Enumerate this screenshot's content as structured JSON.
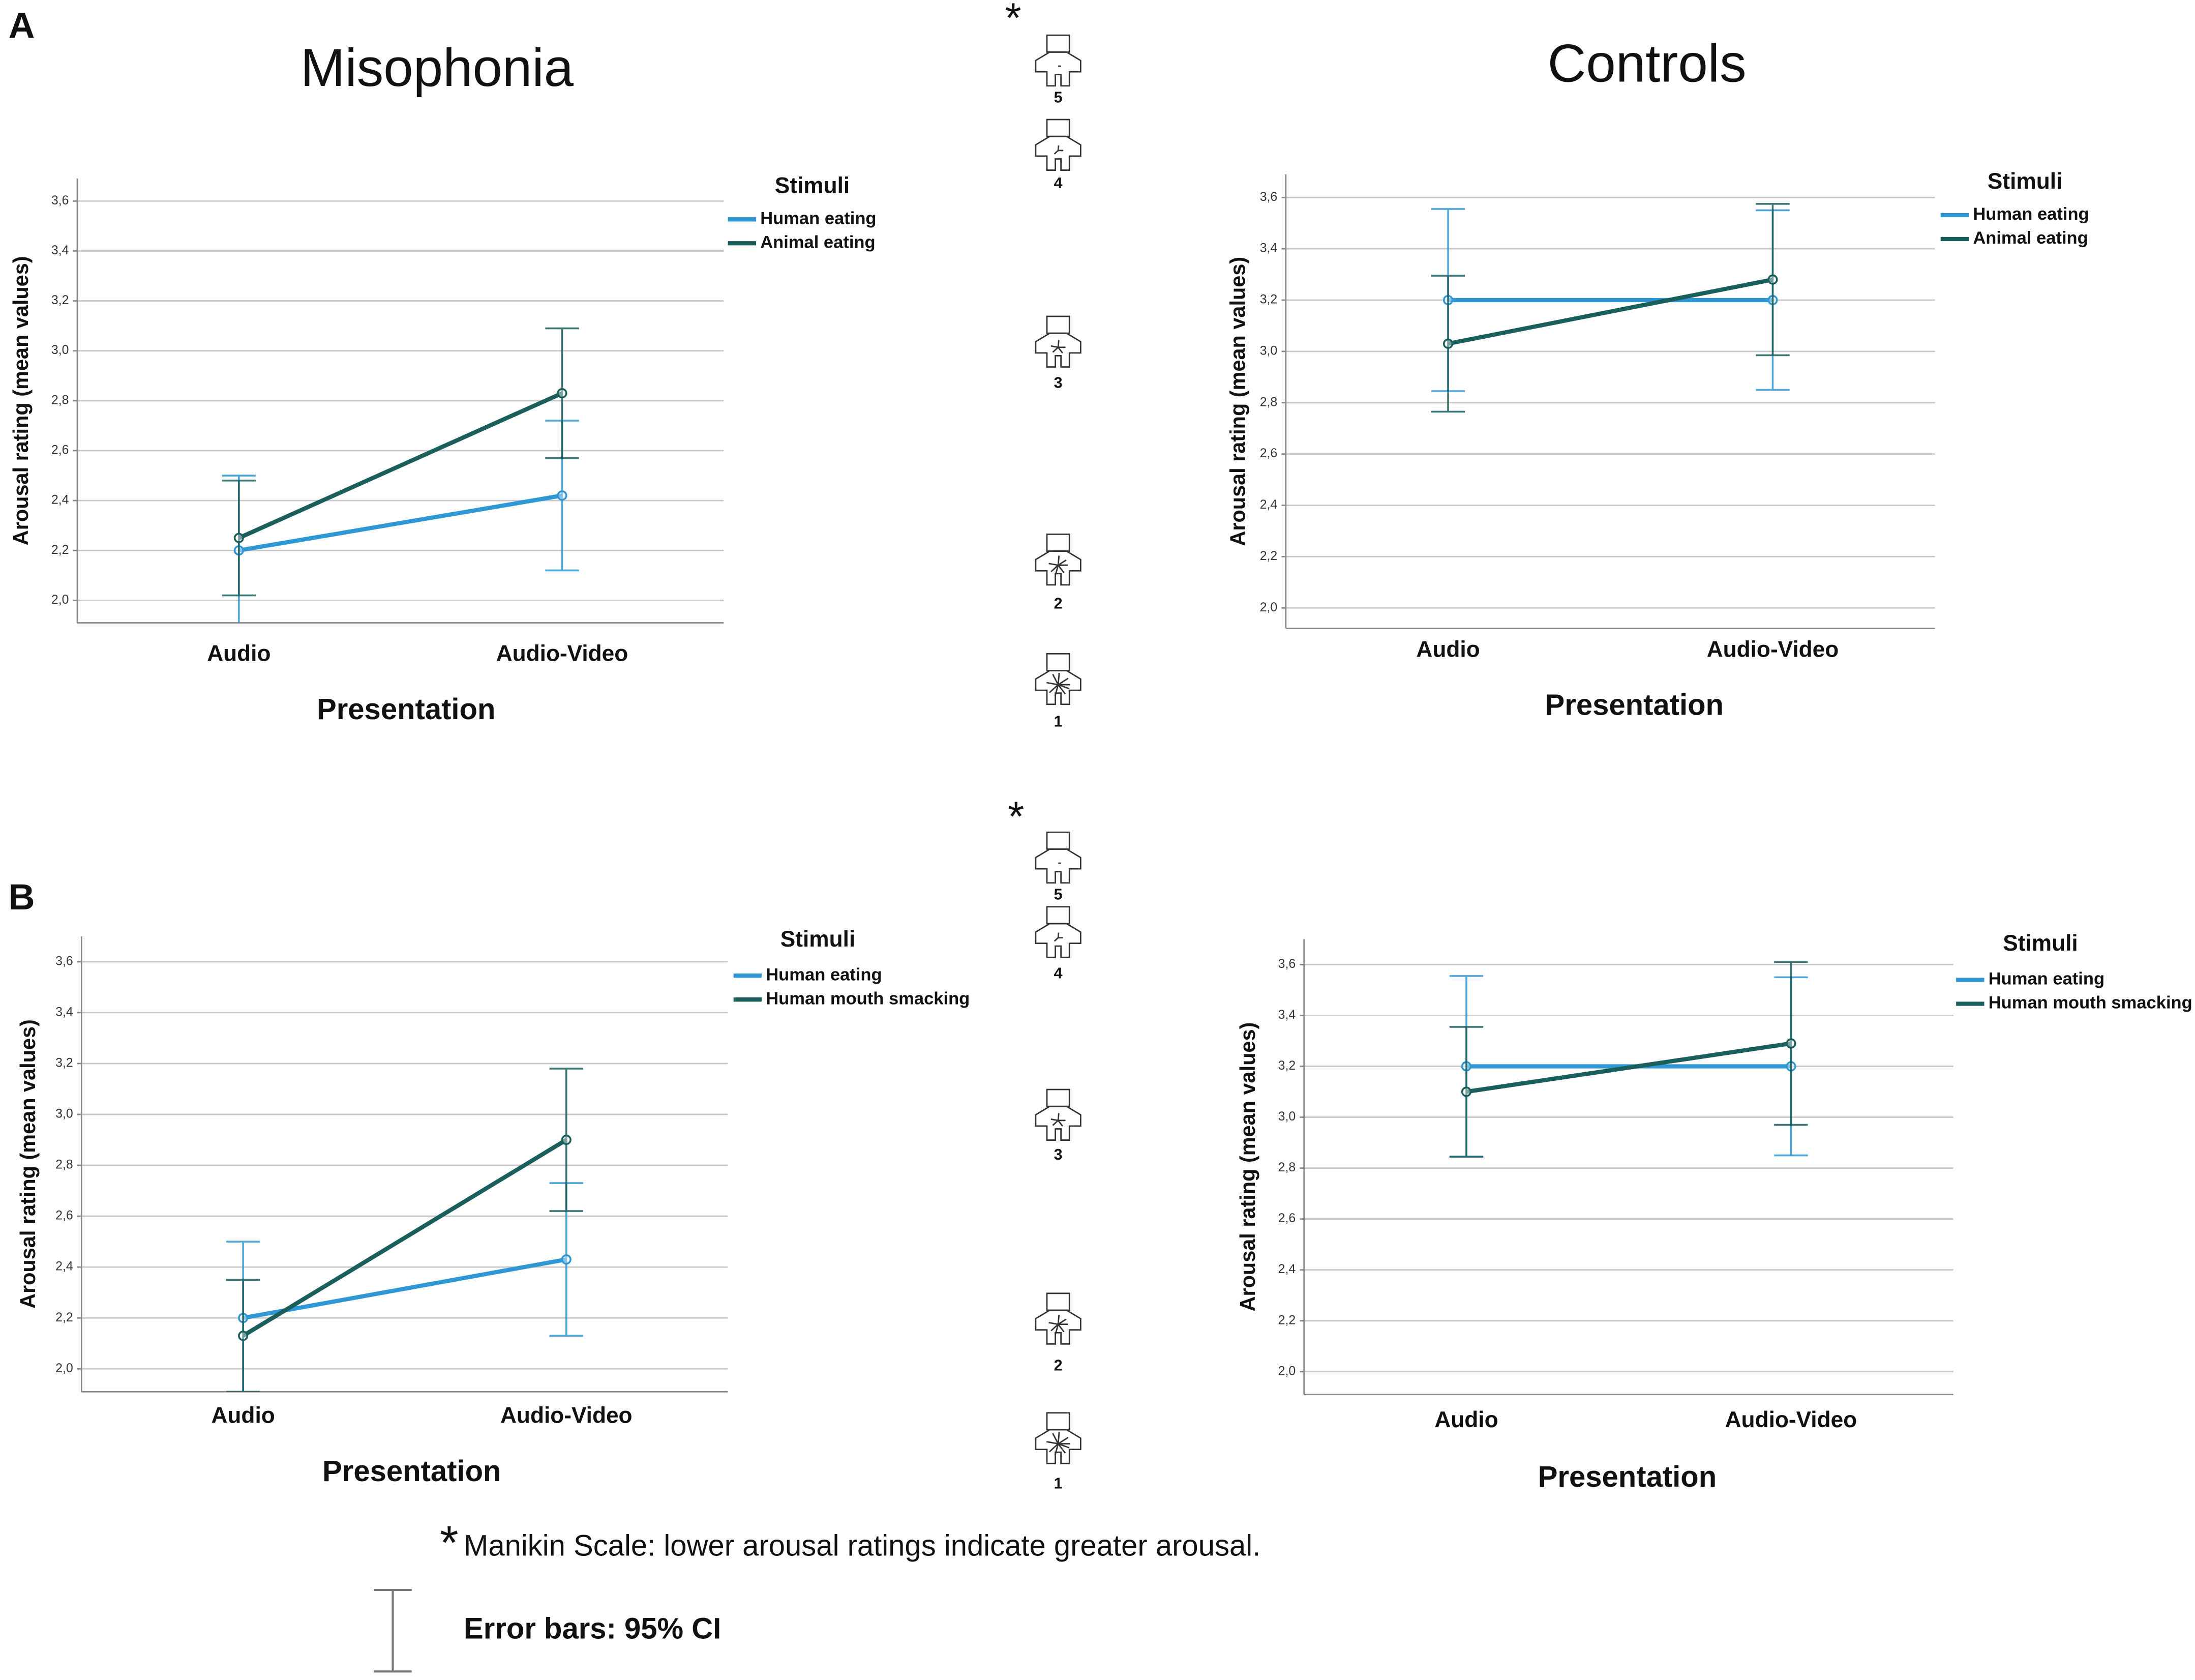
{
  "panel_labels": [
    "A",
    "B"
  ],
  "column_titles": [
    "Misophonia",
    "Controls"
  ],
  "manikin_scales": [
    {
      "marker": "*",
      "levels": [
        "5",
        "4",
        "3",
        "2",
        "1"
      ]
    },
    {
      "marker": "*",
      "levels": [
        "5",
        "4",
        "3",
        "2",
        "1"
      ]
    }
  ],
  "footnote": {
    "marker": "*",
    "text": "Manikin Scale: lower arousal ratings indicate greater arousal.",
    "error_bar_note": "Error bars: 95% CI"
  },
  "chart_data": [
    {
      "type": "line",
      "x_label": "Presentation",
      "y_label": "Arousal rating (mean values)",
      "legend_title": "Stimuli",
      "categories": [
        "Audio",
        "Audio-Video"
      ],
      "series": [
        {
          "name": "Human eating",
          "color": "#2f98d4",
          "values": [
            2.2,
            2.42
          ],
          "errors": [
            0.3,
            0.3
          ]
        },
        {
          "name": "Animal eating",
          "color": "#1b5f5c",
          "values": [
            2.25,
            2.83
          ],
          "errors": [
            0.23,
            0.26
          ]
        }
      ],
      "ylim": [
        1.91,
        3.69
      ],
      "yticks": [
        {
          "value": 2.0,
          "label": "2,0"
        },
        {
          "value": 2.2,
          "label": "2,2"
        },
        {
          "value": 2.4,
          "label": "2,4"
        },
        {
          "value": 2.6,
          "label": "2,6"
        },
        {
          "value": 2.8,
          "label": "2,8"
        },
        {
          "value": 3.0,
          "label": "3,0"
        },
        {
          "value": 3.2,
          "label": "3,2"
        },
        {
          "value": 3.4,
          "label": "3,4"
        },
        {
          "value": 3.6,
          "label": "3,6"
        }
      ],
      "grid": true
    },
    {
      "type": "line",
      "x_label": "Presentation",
      "y_label": "Arousal rating (mean values)",
      "legend_title": "Stimuli",
      "categories": [
        "Audio",
        "Audio-Video"
      ],
      "series": [
        {
          "name": "Human eating",
          "color": "#2f98d4",
          "values": [
            3.2,
            3.2
          ],
          "errors": [
            0.355,
            0.35
          ]
        },
        {
          "name": "Animal eating",
          "color": "#1b5f5c",
          "values": [
            3.03,
            3.28
          ],
          "errors": [
            0.265,
            0.295
          ]
        }
      ],
      "ylim": [
        1.92,
        3.69
      ],
      "yticks": [
        {
          "value": 2.0,
          "label": "2,0"
        },
        {
          "value": 2.2,
          "label": "2,2"
        },
        {
          "value": 2.4,
          "label": "2,4"
        },
        {
          "value": 2.6,
          "label": "2,6"
        },
        {
          "value": 2.8,
          "label": "2,8"
        },
        {
          "value": 3.0,
          "label": "3,0"
        },
        {
          "value": 3.2,
          "label": "3,2"
        },
        {
          "value": 3.4,
          "label": "3,4"
        },
        {
          "value": 3.6,
          "label": "3,6"
        }
      ],
      "grid": true
    },
    {
      "type": "line",
      "x_label": "Presentation",
      "y_label": "Arousal rating (mean values)",
      "legend_title": "Stimuli",
      "categories": [
        "Audio",
        "Audio-Video"
      ],
      "series": [
        {
          "name": "Human eating",
          "color": "#2f98d4",
          "values": [
            2.2,
            2.43
          ],
          "errors": [
            0.3,
            0.3
          ]
        },
        {
          "name": "Human mouth smacking",
          "color": "#1b5f5c",
          "values": [
            2.13,
            2.9
          ],
          "errors": [
            0.22,
            0.28
          ]
        }
      ],
      "ylim": [
        1.91,
        3.7
      ],
      "yticks": [
        {
          "value": 2.0,
          "label": "2,0"
        },
        {
          "value": 2.2,
          "label": "2,2"
        },
        {
          "value": 2.4,
          "label": "2,4"
        },
        {
          "value": 2.6,
          "label": "2,6"
        },
        {
          "value": 2.8,
          "label": "2,8"
        },
        {
          "value": 3.0,
          "label": "3,0"
        },
        {
          "value": 3.2,
          "label": "3,2"
        },
        {
          "value": 3.4,
          "label": "3,4"
        },
        {
          "value": 3.6,
          "label": "3,6"
        }
      ],
      "grid": true
    },
    {
      "type": "line",
      "x_label": "Presentation",
      "y_label": "Arousal rating (mean values)",
      "legend_title": "Stimuli",
      "categories": [
        "Audio",
        "Audio-Video"
      ],
      "series": [
        {
          "name": "Human eating",
          "color": "#2f98d4",
          "values": [
            3.2,
            3.2
          ],
          "errors": [
            0.355,
            0.35
          ]
        },
        {
          "name": "Human mouth smacking",
          "color": "#1b5f5c",
          "values": [
            3.1,
            3.29
          ],
          "errors": [
            0.255,
            0.32
          ]
        }
      ],
      "ylim": [
        1.91,
        3.7
      ],
      "yticks": [
        {
          "value": 2.0,
          "label": "2,0"
        },
        {
          "value": 2.2,
          "label": "2,2"
        },
        {
          "value": 2.4,
          "label": "2,4"
        },
        {
          "value": 2.6,
          "label": "2,6"
        },
        {
          "value": 2.8,
          "label": "2,8"
        },
        {
          "value": 3.0,
          "label": "3,0"
        },
        {
          "value": 3.2,
          "label": "3,2"
        },
        {
          "value": 3.4,
          "label": "3,4"
        },
        {
          "value": 3.6,
          "label": "3,6"
        }
      ],
      "grid": true
    }
  ]
}
